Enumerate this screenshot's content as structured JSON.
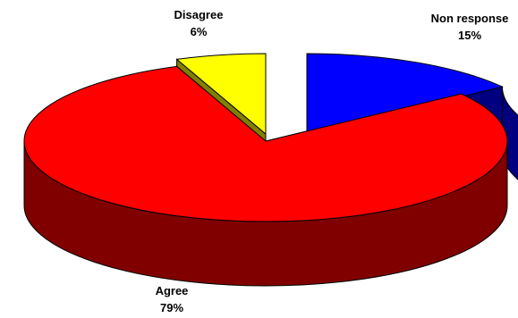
{
  "chart_data": {
    "type": "pie",
    "title": "",
    "labels": [
      "Non response",
      "Agree",
      "Disagree"
    ],
    "values": [
      15,
      79,
      6
    ],
    "value_labels": [
      "15%",
      "79%",
      "6%"
    ],
    "colors": {
      "Non response": {
        "top": "#0000ff",
        "side": "#000080"
      },
      "Agree": {
        "top": "#ff0000",
        "side": "#800000"
      },
      "Disagree": {
        "top": "#ffff00",
        "side": "#808000"
      }
    },
    "style": "3d-exploded",
    "legend": "none"
  }
}
